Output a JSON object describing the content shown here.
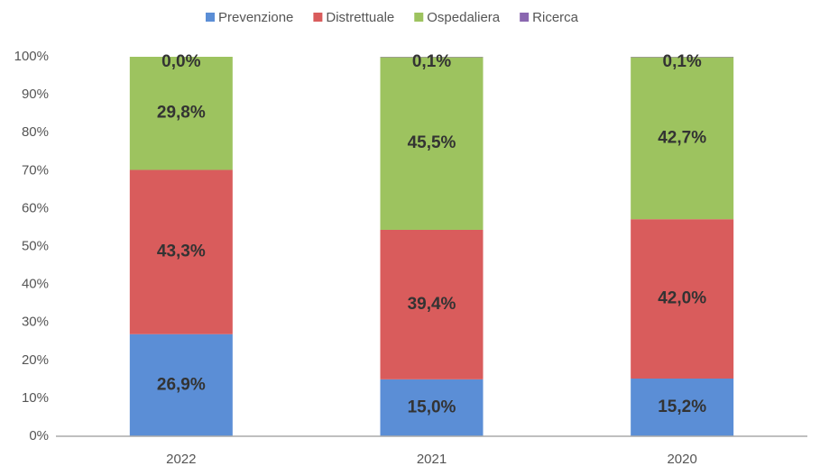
{
  "chart_data": {
    "type": "stacked_bar",
    "categories": [
      "2022",
      "2021",
      "2020"
    ],
    "series": [
      {
        "name": "Prevenzione",
        "color": "#5b8ed6",
        "values": [
          26.9,
          15.0,
          15.2
        ],
        "value_labels": [
          "26,9%",
          "15,0%",
          "15,2%"
        ]
      },
      {
        "name": "Distrettuale",
        "color": "#d95c5c",
        "values": [
          43.3,
          39.4,
          42.0
        ],
        "value_labels": [
          "43,3%",
          "39,4%",
          "42,0%"
        ]
      },
      {
        "name": "Ospedaliera",
        "color": "#9dc35f",
        "values": [
          29.8,
          45.5,
          42.7
        ],
        "value_labels": [
          "29,8%",
          "45,5%",
          "42,7%"
        ]
      },
      {
        "name": "Ricerca",
        "color": "#8a67b0",
        "values": [
          0.0,
          0.1,
          0.1
        ],
        "value_labels": [
          "0,0%",
          "0,1%",
          "0,1%"
        ]
      }
    ],
    "ylim": [
      0,
      100
    ],
    "yticks": [
      {
        "value": 0,
        "label": "0%"
      },
      {
        "value": 10,
        "label": "10%"
      },
      {
        "value": 20,
        "label": "20%"
      },
      {
        "value": 30,
        "label": "30%"
      },
      {
        "value": 40,
        "label": "40%"
      },
      {
        "value": 50,
        "label": "50%"
      },
      {
        "value": 60,
        "label": "60%"
      },
      {
        "value": 70,
        "label": "70%"
      },
      {
        "value": 80,
        "label": "80%"
      },
      {
        "value": 90,
        "label": "90%"
      },
      {
        "value": 100,
        "label": "100%"
      }
    ],
    "legend": "top",
    "grid": false
  }
}
